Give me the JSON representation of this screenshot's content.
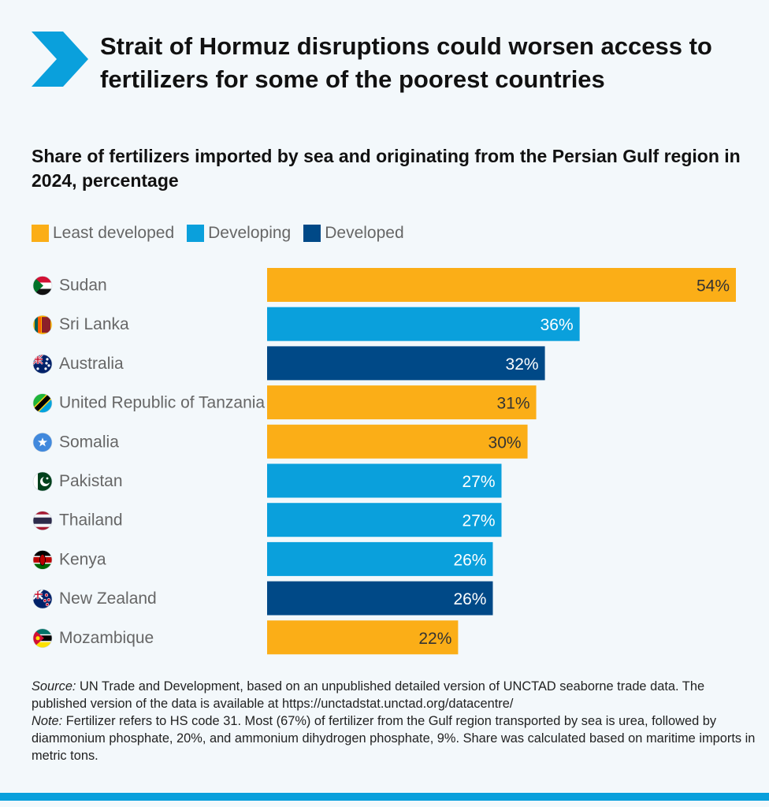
{
  "header": {
    "title": "Strait of Hormuz disruptions could worsen access to fertilizers for some of the poorest countries",
    "subtitle": "Share of fertilizers imported by sea and originating from the Persian Gulf region in 2024, percentage",
    "chevron_color": "#0aa0dc"
  },
  "legend": [
    {
      "label": "Least developed",
      "color": "#fbae17"
    },
    {
      "label": "Developing",
      "color": "#0aa0dc"
    },
    {
      "label": "Developed",
      "color": "#004987"
    }
  ],
  "chart_data": {
    "type": "bar",
    "orientation": "horizontal",
    "categories": [
      "Sudan",
      "Sri Lanka",
      "Australia",
      "United Republic of Tanzania",
      "Somalia",
      "Pakistan",
      "Thailand",
      "Kenya",
      "New Zealand",
      "Mozambique"
    ],
    "values": [
      54,
      36,
      32,
      31,
      30,
      27,
      27,
      26,
      26,
      22
    ],
    "data_labels": [
      "54%",
      "36%",
      "32%",
      "31%",
      "30%",
      "27%",
      "27%",
      "26%",
      "26%",
      "22%"
    ],
    "groups": [
      "Least developed",
      "Developing",
      "Developed",
      "Least developed",
      "Least developed",
      "Developing",
      "Developing",
      "Developing",
      "Developed",
      "Least developed"
    ],
    "xlim": [
      0,
      54
    ],
    "grid": false,
    "legend_position": "top-left",
    "title": "Share of fertilizers imported by sea and originating from the Persian Gulf region in 2024, percentage",
    "xlabel": "",
    "ylabel": ""
  },
  "flags": [
    {
      "country": "Sudan",
      "icon": "sudan-flag-icon"
    },
    {
      "country": "Sri Lanka",
      "icon": "sri-lanka-flag-icon"
    },
    {
      "country": "Australia",
      "icon": "australia-flag-icon"
    },
    {
      "country": "United Republic of Tanzania",
      "icon": "tanzania-flag-icon"
    },
    {
      "country": "Somalia",
      "icon": "somalia-flag-icon"
    },
    {
      "country": "Pakistan",
      "icon": "pakistan-flag-icon"
    },
    {
      "country": "Thailand",
      "icon": "thailand-flag-icon"
    },
    {
      "country": "Kenya",
      "icon": "kenya-flag-icon"
    },
    {
      "country": "New Zealand",
      "icon": "new-zealand-flag-icon"
    },
    {
      "country": "Mozambique",
      "icon": "mozambique-flag-icon"
    }
  ],
  "notes": {
    "source_label": "Source:",
    "source_text": " UN Trade and Development, based on an unpublished detailed version of UNCTAD seaborne trade data. The published version of the data is available at https://unctadstat.unctad.org/datacentre/",
    "note_label": "Note:",
    "note_text": " Fertilizer refers to HS code 31. Most (67%) of fertilizer from the Gulf region transported by sea is urea, followed by diammonium phosphate, 20%, and ammonium dihydrogen phosphate, 9%. Share was calculated based on maritime imports in metric tons."
  },
  "footer": {
    "bar_color": "#0aa0dc"
  }
}
